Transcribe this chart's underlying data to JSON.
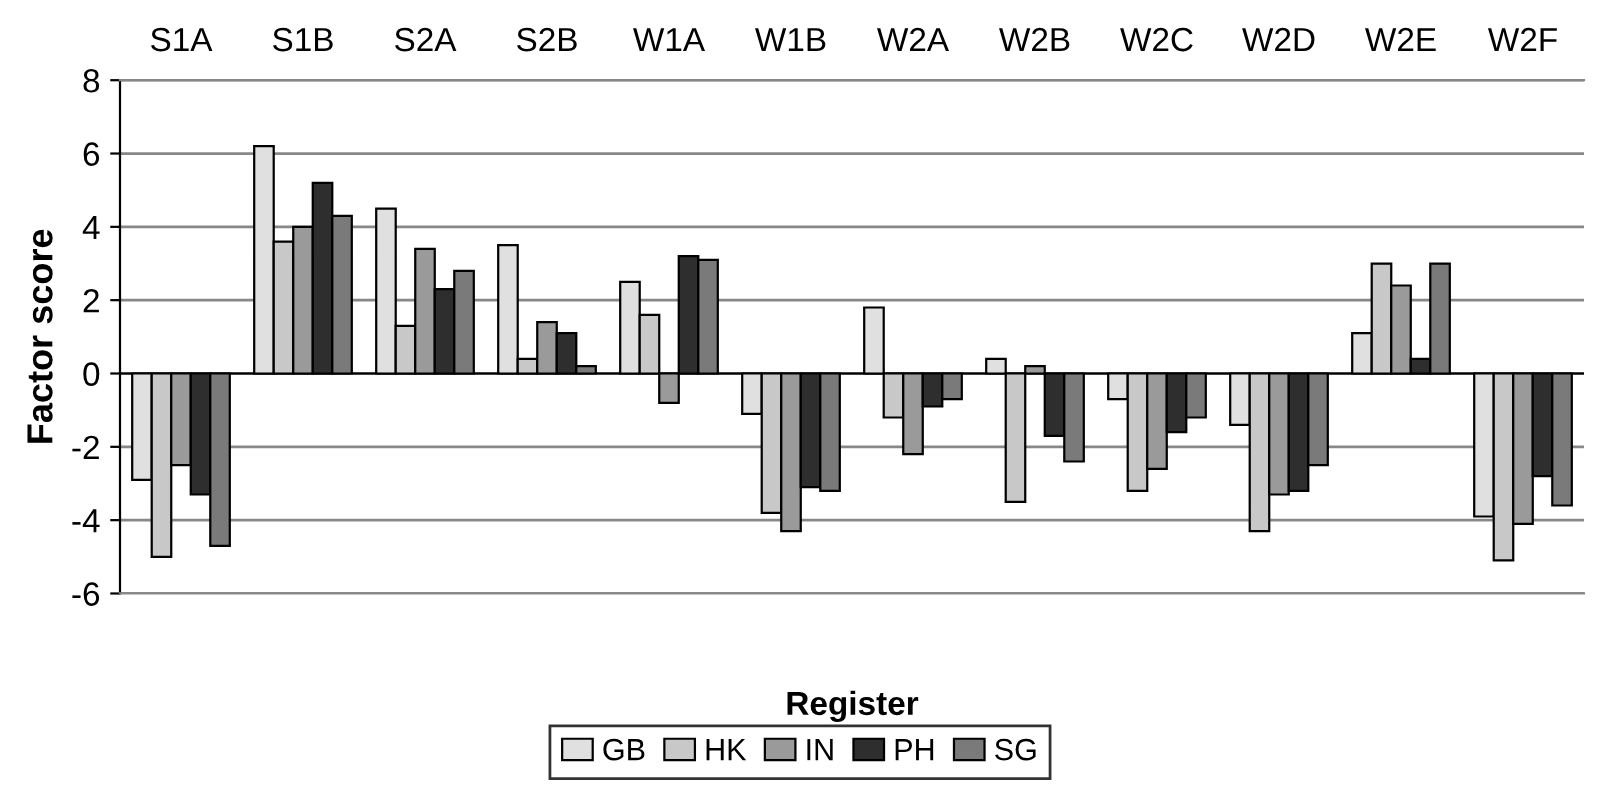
{
  "chart_data": {
    "type": "bar",
    "xlabel": "Register",
    "ylabel": "Factor score",
    "categories": [
      "S1A",
      "S1B",
      "S2A",
      "S2B",
      "W1A",
      "W1B",
      "W2A",
      "W2B",
      "W2C",
      "W2D",
      "W2E",
      "W2F"
    ],
    "series": [
      {
        "name": "GB",
        "color": "#e0e0e0",
        "values": [
          -2.9,
          6.2,
          4.5,
          3.5,
          2.5,
          -1.1,
          1.8,
          0.4,
          -0.7,
          -1.4,
          1.1,
          -3.9
        ]
      },
      {
        "name": "HK",
        "color": "#c8c8c8",
        "values": [
          -5.0,
          3.6,
          1.3,
          0.4,
          1.6,
          -3.8,
          -1.2,
          -3.5,
          -3.2,
          -4.3,
          3.0,
          -5.1
        ]
      },
      {
        "name": "IN",
        "color": "#9a9a9a",
        "values": [
          -2.5,
          4.0,
          3.4,
          1.4,
          -0.8,
          -4.3,
          -2.2,
          0.2,
          -2.6,
          -3.3,
          2.4,
          -4.1
        ]
      },
      {
        "name": "PH",
        "color": "#2e2e2e",
        "values": [
          -3.3,
          5.2,
          2.3,
          1.1,
          3.2,
          -3.1,
          -0.9,
          -1.7,
          -1.6,
          -3.2,
          0.4,
          -2.8
        ]
      },
      {
        "name": "SG",
        "color": "#7a7a7a",
        "values": [
          -4.7,
          4.3,
          2.8,
          0.2,
          3.1,
          -3.2,
          -0.7,
          -2.4,
          -1.2,
          -2.5,
          3.0,
          -3.6
        ]
      }
    ],
    "ylim": [
      -6,
      8
    ],
    "yticks": [
      -6,
      -4,
      -2,
      0,
      2,
      4,
      6,
      8
    ],
    "grid": "y",
    "legend": "bottom"
  }
}
